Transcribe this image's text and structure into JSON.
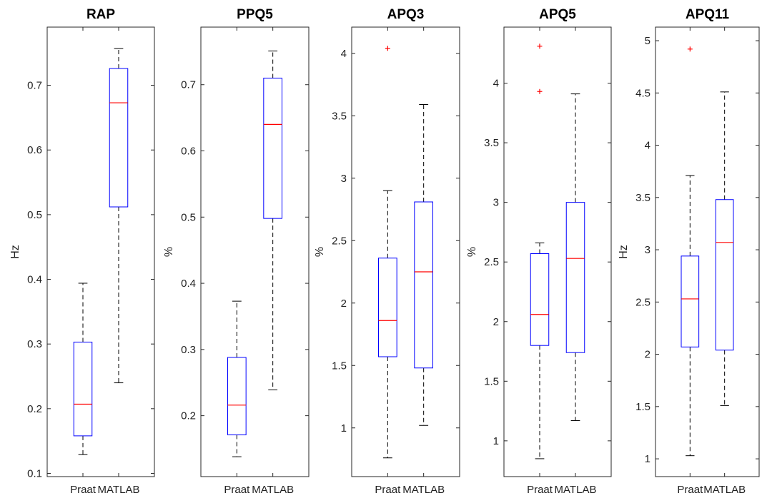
{
  "chart_data": [
    {
      "type": "box",
      "title": "RAP",
      "ylabel": "Hz",
      "categories": [
        "Praat",
        "MATLAB"
      ],
      "ylim": [
        0.095,
        0.79
      ],
      "yticks": [
        0.1,
        0.2,
        0.3,
        0.4,
        0.5,
        0.6,
        0.7
      ],
      "yticklabels": [
        "0.1",
        "0.2",
        "0.3",
        "0.4",
        "0.5",
        "0.6",
        "0.7"
      ],
      "boxes": [
        {
          "category": "Praat",
          "min": 0.129,
          "q1": 0.158,
          "median": 0.207,
          "q3": 0.303,
          "max": 0.394,
          "outliers": []
        },
        {
          "category": "MATLAB",
          "min": 0.24,
          "q1": 0.512,
          "median": 0.673,
          "q3": 0.726,
          "max": 0.757,
          "outliers": []
        }
      ]
    },
    {
      "type": "box",
      "title": "PPQ5",
      "ylabel": "%",
      "categories": [
        "Praat",
        "MATLAB"
      ],
      "ylim": [
        0.108,
        0.787
      ],
      "yticks": [
        0.2,
        0.3,
        0.4,
        0.5,
        0.6,
        0.7
      ],
      "yticklabels": [
        "0.2",
        "0.3",
        "0.4",
        "0.5",
        "0.6",
        "0.7"
      ],
      "boxes": [
        {
          "category": "Praat",
          "min": 0.138,
          "q1": 0.171,
          "median": 0.216,
          "q3": 0.288,
          "max": 0.373,
          "outliers": []
        },
        {
          "category": "MATLAB",
          "min": 0.239,
          "q1": 0.498,
          "median": 0.64,
          "q3": 0.71,
          "max": 0.751,
          "outliers": []
        }
      ]
    },
    {
      "type": "box",
      "title": "APQ3",
      "ylabel": "%",
      "categories": [
        "Praat",
        "MATLAB"
      ],
      "ylim": [
        0.61,
        4.21
      ],
      "yticks": [
        1,
        1.5,
        2,
        2.5,
        3,
        3.5,
        4
      ],
      "yticklabels": [
        "1",
        "1.5",
        "2",
        "2.5",
        "3",
        "3.5",
        "4"
      ],
      "boxes": [
        {
          "category": "Praat",
          "min": 0.76,
          "q1": 1.57,
          "median": 1.86,
          "q3": 2.36,
          "max": 2.9,
          "outliers": [
            4.04
          ]
        },
        {
          "category": "MATLAB",
          "min": 1.02,
          "q1": 1.48,
          "median": 2.25,
          "q3": 2.81,
          "max": 3.59,
          "outliers": []
        }
      ]
    },
    {
      "type": "box",
      "title": "APQ5",
      "ylabel": "%",
      "categories": [
        "Praat",
        "MATLAB"
      ],
      "ylim": [
        0.7,
        4.47
      ],
      "yticks": [
        1,
        1.5,
        2,
        2.5,
        3,
        3.5,
        4
      ],
      "yticklabels": [
        "1",
        "1.5",
        "2",
        "2.5",
        "3",
        "3.5",
        "4"
      ],
      "boxes": [
        {
          "category": "Praat",
          "min": 0.85,
          "q1": 1.8,
          "median": 2.06,
          "q3": 2.57,
          "max": 2.66,
          "outliers": [
            3.93,
            4.31
          ]
        },
        {
          "category": "MATLAB",
          "min": 1.17,
          "q1": 1.74,
          "median": 2.53,
          "q3": 3.0,
          "max": 3.91,
          "outliers": []
        }
      ]
    },
    {
      "type": "box",
      "title": "APQ11",
      "ylabel": "Hz",
      "categories": [
        "Praat",
        "MATLAB"
      ],
      "ylim": [
        0.83,
        5.13
      ],
      "yticks": [
        1,
        1.5,
        2,
        2.5,
        3,
        3.5,
        4,
        4.5,
        5
      ],
      "yticklabels": [
        "1",
        "1.5",
        "2",
        "2.5",
        "3",
        "3.5",
        "4",
        "4.5",
        "5"
      ],
      "boxes": [
        {
          "category": "Praat",
          "min": 1.03,
          "q1": 2.07,
          "median": 2.53,
          "q3": 2.94,
          "max": 3.71,
          "outliers": [
            4.92
          ]
        },
        {
          "category": "MATLAB",
          "min": 1.51,
          "q1": 2.04,
          "median": 3.07,
          "q3": 3.48,
          "max": 4.51,
          "outliers": []
        }
      ]
    }
  ],
  "colors": {
    "box": "#0000ff",
    "median": "#ff0000",
    "whisker": "#000000",
    "outlier": "#ff0000",
    "axis": "#262626"
  }
}
